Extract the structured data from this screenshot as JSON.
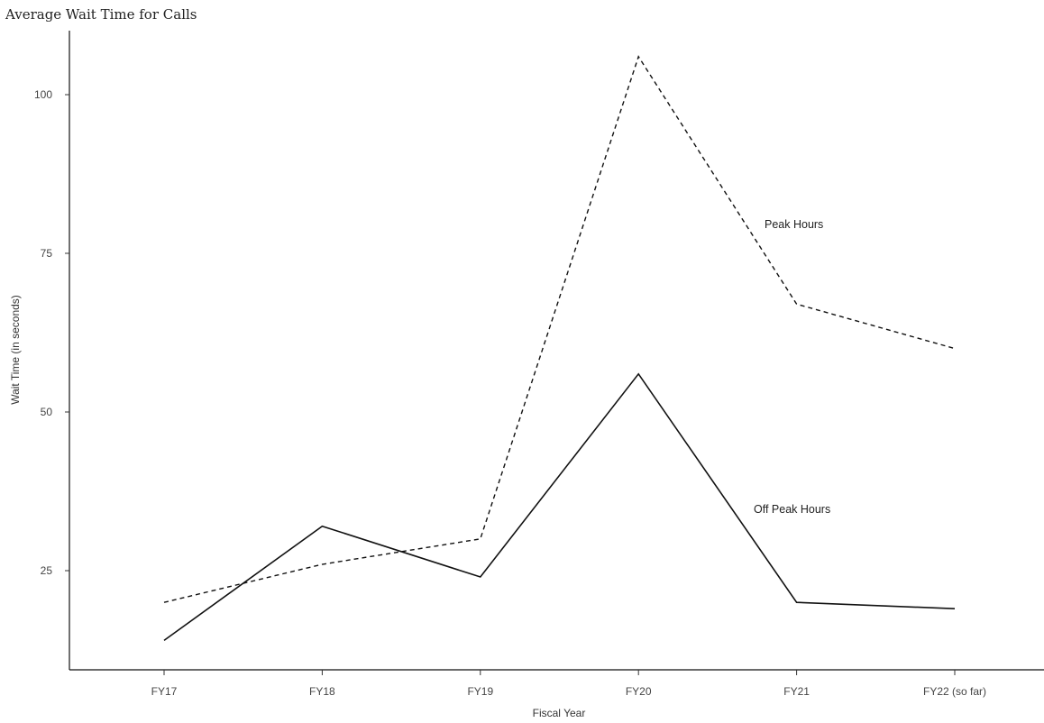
{
  "chart_data": {
    "type": "line",
    "title": "Average Wait Time for Calls",
    "xlabel": "Fiscal Year",
    "ylabel": "Wait Time (in seconds)",
    "categories": [
      "FY17",
      "FY18",
      "FY19",
      "FY20",
      "FY21",
      "FY22 (so far)"
    ],
    "yticks": [
      25,
      50,
      75,
      100
    ],
    "ylim": [
      10,
      110
    ],
    "grid": false,
    "legend": "none",
    "series": [
      {
        "name": "Peak Hours",
        "values": [
          20,
          26,
          30,
          106,
          67,
          60
        ],
        "line_style": "dashed",
        "color": "#111111"
      },
      {
        "name": "Off Peak Hours",
        "values": [
          14,
          32,
          24,
          56,
          20,
          19
        ],
        "line_style": "solid",
        "color": "#111111"
      }
    ]
  }
}
